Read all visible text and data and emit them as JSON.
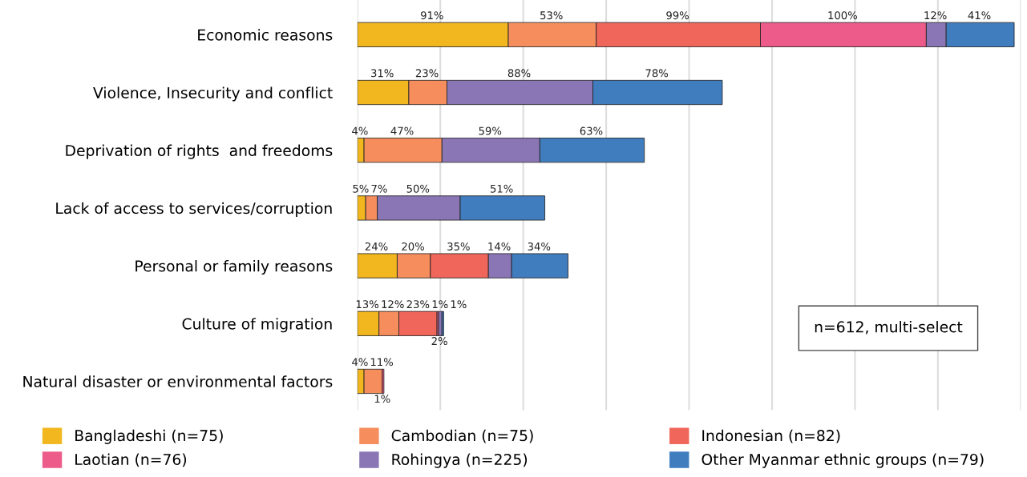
{
  "chart_data": {
    "type": "bar",
    "orientation": "horizontal",
    "stacked": true,
    "categories": [
      "Economic reasons",
      "Violence, Insecurity and conflict",
      "Deprivation of rights  and freedoms",
      "Lack of access to services/corruption",
      "Personal or family reasons",
      "Culture of migration",
      "Natural disaster or environmental factors"
    ],
    "series": [
      {
        "name": "Bangladeshi (n=75)",
        "color": "#f2b71f",
        "values": [
          91,
          31,
          4,
          5,
          24,
          13,
          4
        ],
        "value_labels": [
          "91%",
          "31%",
          "4%",
          "5%",
          "24%",
          "13%",
          "4%"
        ]
      },
      {
        "name": "Cambodian (n=75)",
        "color": "#f68d5c",
        "values": [
          53,
          23,
          47,
          7,
          20,
          12,
          11
        ],
        "value_labels": [
          "53%",
          "23%",
          "47%",
          "7%",
          "20%",
          "12%",
          "11%"
        ]
      },
      {
        "name": "Indonesian (n=82)",
        "color": "#f0665a",
        "values": [
          99,
          null,
          null,
          null,
          35,
          23,
          null
        ],
        "value_labels": [
          "99%",
          null,
          null,
          null,
          "35%",
          "23%",
          null
        ]
      },
      {
        "name": "Laotian (n=76)",
        "color": "#ec5b8a",
        "values": [
          100,
          null,
          null,
          null,
          null,
          1,
          1
        ],
        "value_labels": [
          "100%",
          null,
          null,
          null,
          null,
          "1%",
          "1%"
        ]
      },
      {
        "name": "Rohingya (n=225)",
        "color": "#8a76b5",
        "values": [
          12,
          88,
          59,
          50,
          14,
          2,
          null
        ],
        "value_labels": [
          "12%",
          "88%",
          "59%",
          "50%",
          "14%",
          "2%",
          null
        ]
      },
      {
        "name": "Other Myanmar ethnic groups (n=79)",
        "color": "#3f7dbf",
        "values": [
          41,
          78,
          63,
          51,
          34,
          1,
          null
        ],
        "value_labels": [
          "41%",
          "78%",
          "63%",
          "51%",
          "34%",
          "1%",
          null
        ]
      }
    ],
    "xlim": [
      0,
      400
    ],
    "xticks": [
      {
        "value": 0,
        "label": null
      },
      {
        "value": 50,
        "label": null
      },
      {
        "value": 100,
        "label": null
      },
      {
        "value": 150,
        "label": null
      },
      {
        "value": 200,
        "label": null
      },
      {
        "value": 250,
        "label": null
      },
      {
        "value": 300,
        "label": null
      },
      {
        "value": 350,
        "label": null
      },
      {
        "value": 400,
        "label": null
      }
    ],
    "tick_labels": "y",
    "grid": "x",
    "legend": "bottom",
    "annotations": [
      "n=612, multi-select"
    ]
  }
}
